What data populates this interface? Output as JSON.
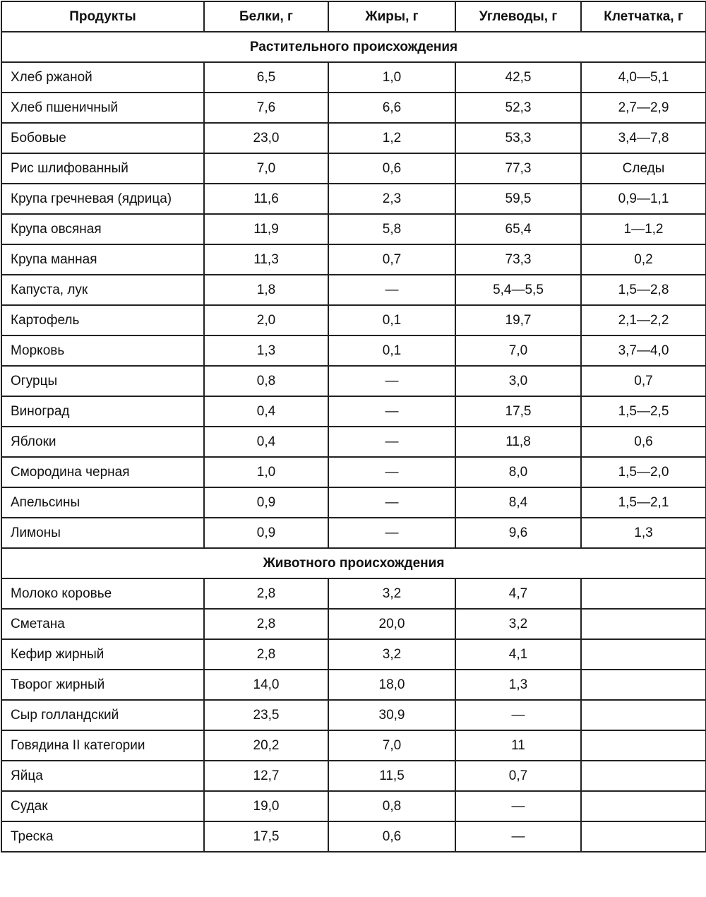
{
  "headers": [
    "Продукты",
    "Белки, г",
    "Жиры, г",
    "Углеводы, г",
    "Клетчатка, г"
  ],
  "sections": [
    {
      "title": "Растительного происхождения",
      "rows": [
        [
          "Хлеб ржаной",
          "6,5",
          "1,0",
          "42,5",
          "4,0—5,1"
        ],
        [
          "Хлеб пшеничный",
          "7,6",
          "6,6",
          "52,3",
          "2,7—2,9"
        ],
        [
          "Бобовые",
          "23,0",
          "1,2",
          "53,3",
          "3,4—7,8"
        ],
        [
          "Рис шлифованный",
          "7,0",
          "0,6",
          "77,3",
          "Следы"
        ],
        [
          "Крупа гречневая (ядрица)",
          "11,6",
          "2,3",
          "59,5",
          "0,9—1,1"
        ],
        [
          "Крупа овсяная",
          "11,9",
          "5,8",
          "65,4",
          "1—1,2"
        ],
        [
          "Крупа манная",
          "11,3",
          "0,7",
          "73,3",
          "0,2"
        ],
        [
          "Капуста, лук",
          "1,8",
          "—",
          "5,4—5,5",
          "1,5—2,8"
        ],
        [
          "Картофель",
          "2,0",
          "0,1",
          "19,7",
          "2,1—2,2"
        ],
        [
          "Морковь",
          "1,3",
          "0,1",
          "7,0",
          "3,7—4,0"
        ],
        [
          "Огурцы",
          "0,8",
          "—",
          "3,0",
          "0,7"
        ],
        [
          "Виноград",
          "0,4",
          "—",
          "17,5",
          "1,5—2,5"
        ],
        [
          "Яблоки",
          "0,4",
          "—",
          "11,8",
          "0,6"
        ],
        [
          "Смородина черная",
          "1,0",
          "—",
          "8,0",
          "1,5—2,0"
        ],
        [
          "Апельсины",
          "0,9",
          "—",
          "8,4",
          "1,5—2,1"
        ],
        [
          "Лимоны",
          "0,9",
          "—",
          "9,6",
          "1,3"
        ]
      ]
    },
    {
      "title": "Животного происхождения",
      "rows": [
        [
          "Молоко коровье",
          "2,8",
          "3,2",
          "4,7",
          ""
        ],
        [
          "Сметана",
          "2,8",
          "20,0",
          "3,2",
          ""
        ],
        [
          "Кефир жирный",
          "2,8",
          "3,2",
          "4,1",
          ""
        ],
        [
          "Творог жирный",
          "14,0",
          "18,0",
          "1,3",
          ""
        ],
        [
          "Сыр голландский",
          "23,5",
          "30,9",
          "—",
          ""
        ],
        [
          "Говядина II категории",
          "20,2",
          "7,0",
          "11",
          ""
        ],
        [
          "Яйца",
          "12,7",
          "11,5",
          "0,7",
          ""
        ],
        [
          "Судак",
          "19,0",
          "0,8",
          "—",
          ""
        ],
        [
          "Треска",
          "17,5",
          "0,6",
          "—",
          ""
        ]
      ]
    }
  ]
}
